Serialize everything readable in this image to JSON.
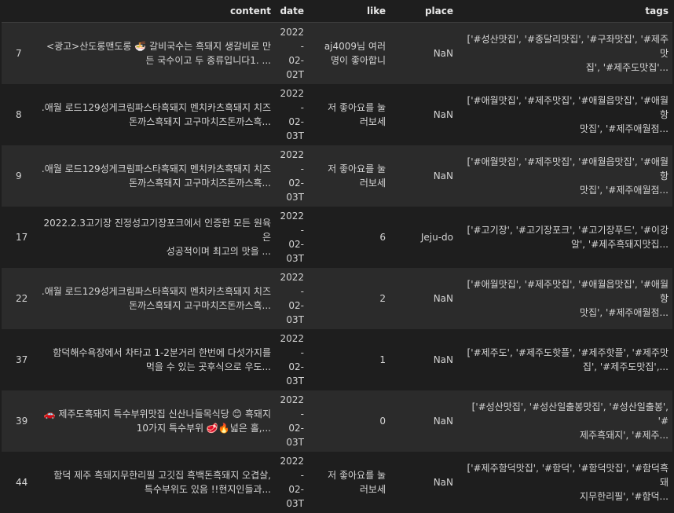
{
  "columns": [
    "",
    "content",
    "date",
    "like",
    "place",
    "tags"
  ],
  "rows": [
    {
      "index": "7",
      "content": [
        "<광고>산도롱맨도롱 🍜 갈비국수는 흑돼지 생갈비로 만",
        "든 국수이고 두 종류입니다1. ..."
      ],
      "date": [
        "2022-",
        "02-",
        "02T"
      ],
      "like": [
        "aj4009님 여러",
        "명이 좋아합니"
      ],
      "place": "NaN",
      "tags": [
        "['#성산맛집', '#종달리맛집', '#구좌맛집', '#제주맛",
        "집', '#제주도맛집'..."
      ]
    },
    {
      "index": "8",
      "content": [
        ".애월 로드129성게크림파스타흑돼지 멘치카츠흑돼지 치즈",
        "돈까스흑돼지 고구마치즈돈까스흑..."
      ],
      "date": [
        "2022-",
        "02-",
        "03T"
      ],
      "like": [
        "저 좋아요를 눌",
        "러보세"
      ],
      "place": "NaN",
      "tags": [
        "['#애월맛집', '#제주맛집', '#애월읍맛집', '#애월항",
        "맛집', '#제주애월점..."
      ]
    },
    {
      "index": "9",
      "content": [
        ".애월 로드129성게크림파스타흑돼지 멘치카츠흑돼지 치즈",
        "돈까스흑돼지 고구마치즈돈까스흑..."
      ],
      "date": [
        "2022-",
        "02-",
        "03T"
      ],
      "like": [
        "저 좋아요를 눌",
        "러보세"
      ],
      "place": "NaN",
      "tags": [
        "['#애월맛집', '#제주맛집', '#애월읍맛집', '#애월항",
        "맛집', '#제주애월점..."
      ]
    },
    {
      "index": "17",
      "content": [
        "2022.2.3고기장 진정성고기장포크에서 인증한 모든 원육은",
        "성공적이며 최고의 맛을 ..."
      ],
      "date": [
        "2022-",
        "02-",
        "03T"
      ],
      "like": [
        "6"
      ],
      "place": "Jeju-do",
      "tags": [
        "['#고기장', '#고기장포크', '#고기장푸드', '#이강",
        "알', '#제주흑돼지맛집..."
      ]
    },
    {
      "index": "22",
      "content": [
        ".애월 로드129성게크림파스타흑돼지 멘치카츠흑돼지 치즈",
        "돈까스흑돼지 고구마치즈돈까스흑..."
      ],
      "date": [
        "2022-",
        "02-",
        "03T"
      ],
      "like": [
        "2"
      ],
      "place": "NaN",
      "tags": [
        "['#애월맛집', '#제주맛집', '#애월읍맛집', '#애월항",
        "맛집', '#제주애월점..."
      ]
    },
    {
      "index": "37",
      "content": [
        "함덕해수욕장에서 차타고 1-2분거리 한번에 다섯가지를",
        "먹을 수 있는 곳후식으로 우도..."
      ],
      "date": [
        "2022-",
        "02-",
        "03T"
      ],
      "like": [
        "1"
      ],
      "place": "NaN",
      "tags": [
        "['#제주도', '#제주도핫플', '#제주핫플', '#제주맛",
        "집', '#제주도맛집',..."
      ]
    },
    {
      "index": "39",
      "content": [
        "🚗 제주도흑돼지 특수부위맛집 신산나들목식당 😊 흑돼지",
        "10가지 특수부위 🥩🔥넓은 홀,..."
      ],
      "date": [
        "2022-",
        "02-",
        "03T"
      ],
      "like": [
        "0"
      ],
      "place": "NaN",
      "tags": [
        "['#성산맛집', '#성산일출봉맛집', '#성산일출봉', '#",
        "제주흑돼지', '#제주..."
      ]
    },
    {
      "index": "44",
      "content": [
        "함덕 제주 흑돼지무한리필 고깃집 흑백돈흑돼지 오겹살,",
        "특수부위도 있음 !!현지인들과..."
      ],
      "date": [
        "2022-",
        "02-",
        "03T"
      ],
      "like": [
        "저 좋아요를 눌",
        "러보세"
      ],
      "place": "NaN",
      "tags": [
        "['#제주함덕맛집', '#함덕', '#함덕맛집', '#함덕흑돼",
        "지무한리필', '#함덕..."
      ]
    }
  ]
}
